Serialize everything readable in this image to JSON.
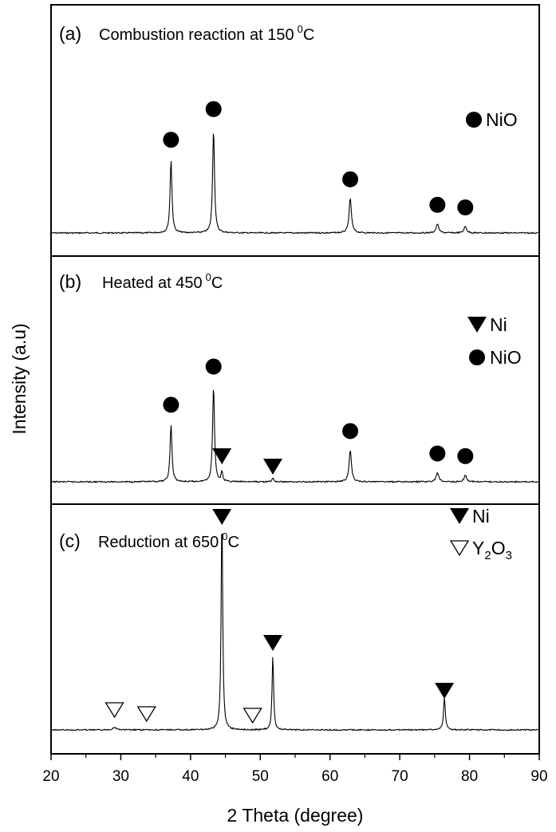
{
  "chart_data": {
    "type": "line",
    "xlabel": "2 Theta (degree)",
    "ylabel": "Intensity (a.u)",
    "xlim": [
      20,
      90
    ],
    "xticks": [
      20,
      30,
      40,
      50,
      60,
      70,
      80,
      90
    ],
    "panels": [
      {
        "tag": "(a)",
        "title": "Combustion reaction at 150",
        "title_sup": "0",
        "title_unit": "C",
        "legend": [
          {
            "marker": "circle",
            "label": "NiO"
          }
        ],
        "peaks": [
          {
            "x": 37.2,
            "h": 0.58,
            "w": 0.16,
            "marker": "circle"
          },
          {
            "x": 43.3,
            "h": 0.82,
            "w": 0.16,
            "marker": "circle"
          },
          {
            "x": 62.9,
            "h": 0.27,
            "w": 0.2,
            "marker": "circle"
          },
          {
            "x": 75.4,
            "h": 0.07,
            "w": 0.22,
            "marker": "circle"
          },
          {
            "x": 79.4,
            "h": 0.05,
            "w": 0.22,
            "marker": "circle"
          }
        ]
      },
      {
        "tag": "(b)",
        "title": "Heated at 450",
        "title_sup": "0",
        "title_unit": "C",
        "legend": [
          {
            "marker": "triangle-filled",
            "label": "Ni"
          },
          {
            "marker": "circle",
            "label": "NiO"
          }
        ],
        "peaks": [
          {
            "x": 37.2,
            "h": 0.44,
            "w": 0.16,
            "marker": "circle"
          },
          {
            "x": 43.3,
            "h": 0.73,
            "w": 0.16,
            "marker": "circle"
          },
          {
            "x": 44.5,
            "h": 0.08,
            "w": 0.13,
            "marker": "triangle-filled"
          },
          {
            "x": 51.8,
            "h": 0.03,
            "w": 0.13,
            "marker": "triangle-filled"
          },
          {
            "x": 62.9,
            "h": 0.24,
            "w": 0.2,
            "marker": "circle"
          },
          {
            "x": 75.4,
            "h": 0.07,
            "w": 0.22,
            "marker": "circle"
          },
          {
            "x": 79.4,
            "h": 0.05,
            "w": 0.22,
            "marker": "circle"
          }
        ]
      },
      {
        "tag": "(c)",
        "title": "Reduction at 650",
        "title_sup": "0",
        "title_unit": "C",
        "legend": [
          {
            "marker": "triangle-filled",
            "label": "Ni"
          },
          {
            "marker": "triangle-open",
            "label": "Y",
            "sub1": "2",
            "mid": "O",
            "sub2": "3"
          }
        ],
        "peaks": [
          {
            "x": 29.1,
            "h": 0.012,
            "w": 0.3,
            "marker": "triangle-open"
          },
          {
            "x": 33.7,
            "h": 0.0,
            "w": 0.3,
            "marker": "triangle-open"
          },
          {
            "x": 44.5,
            "h": 1.0,
            "w": 0.13,
            "marker": "triangle-filled"
          },
          {
            "x": 48.9,
            "h": 0.0,
            "w": 0.3,
            "marker": "triangle-open"
          },
          {
            "x": 51.8,
            "h": 0.34,
            "w": 0.13,
            "marker": "triangle-filled"
          },
          {
            "x": 76.4,
            "h": 0.15,
            "w": 0.15,
            "marker": "triangle-filled"
          }
        ]
      }
    ]
  }
}
